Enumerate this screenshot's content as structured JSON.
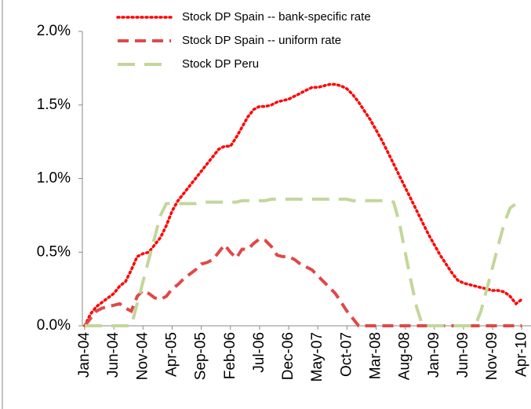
{
  "chart_data": {
    "type": "line",
    "categories": [
      "Jan-04",
      null,
      null,
      null,
      null,
      "Jun-04",
      null,
      null,
      null,
      null,
      "Nov-04",
      null,
      null,
      null,
      null,
      "Apr-05",
      null,
      null,
      null,
      null,
      "Sep-05",
      null,
      null,
      null,
      null,
      "Feb-06",
      null,
      null,
      null,
      null,
      "Jul-06",
      null,
      null,
      null,
      null,
      "Dec-06",
      null,
      null,
      null,
      null,
      "May-07",
      null,
      null,
      null,
      null,
      "Oct-07",
      null,
      null,
      null,
      null,
      "Mar-08",
      null,
      null,
      null,
      null,
      "Aug-08",
      null,
      null,
      null,
      null,
      "Jan-09",
      null,
      null,
      null,
      null,
      "Jun-09",
      null,
      null,
      null,
      null,
      "Nov-09",
      null,
      null,
      null,
      null,
      "Apr-10"
    ],
    "series": [
      {
        "name": "Stock DP Spain -- bank-specific rate",
        "color": "#ff0000",
        "style": "dotted",
        "values": [
          0,
          0.08,
          0.13,
          0.16,
          0.19,
          0.22,
          0.27,
          0.3,
          0.38,
          0.47,
          0.49,
          0.5,
          0.55,
          0.6,
          0.68,
          0.78,
          0.85,
          0.9,
          0.95,
          1.0,
          1.05,
          1.1,
          1.15,
          1.2,
          1.22,
          1.22,
          1.28,
          1.35,
          1.42,
          1.47,
          1.49,
          1.49,
          1.5,
          1.52,
          1.53,
          1.54,
          1.56,
          1.58,
          1.6,
          1.62,
          1.62,
          1.63,
          1.64,
          1.64,
          1.63,
          1.61,
          1.57,
          1.52,
          1.46,
          1.4,
          1.33,
          1.26,
          1.18,
          1.1,
          1.02,
          0.94,
          0.86,
          0.78,
          0.7,
          0.62,
          0.55,
          0.48,
          0.42,
          0.36,
          0.31,
          0.29,
          0.28,
          0.27,
          0.26,
          0.25,
          0.24,
          0.24,
          0.23,
          0.2,
          0.15,
          0.18
        ]
      },
      {
        "name": "Stock DP Spain -- uniform rate",
        "color": "#e04848",
        "style": "dashed",
        "values": [
          0,
          0.05,
          0.1,
          0.12,
          0.13,
          0.14,
          0.15,
          0.12,
          0.1,
          0.2,
          0.24,
          0.22,
          0.19,
          0.18,
          0.2,
          0.25,
          0.28,
          0.32,
          0.35,
          0.38,
          0.42,
          0.43,
          0.45,
          0.5,
          0.55,
          0.5,
          0.46,
          0.52,
          0.52,
          0.56,
          0.59,
          0.58,
          0.54,
          0.48,
          0.47,
          0.47,
          0.45,
          0.42,
          0.4,
          0.38,
          0.34,
          0.3,
          0.26,
          0.22,
          0.16,
          0.1,
          0.05,
          0,
          0,
          0,
          0,
          0,
          0,
          0,
          0,
          0,
          0,
          0,
          0,
          0,
          0,
          0,
          0,
          0,
          0,
          0,
          0,
          0,
          0,
          0,
          0,
          0,
          0,
          0,
          0,
          0
        ]
      },
      {
        "name": "Stock DP Peru",
        "color": "#c3d69b",
        "style": "longdash",
        "values": [
          0,
          0,
          0,
          0,
          0,
          0,
          0,
          0,
          0,
          0.15,
          0.3,
          0.45,
          0.6,
          0.75,
          0.83,
          0.83,
          0.83,
          0.83,
          0.83,
          0.83,
          0.84,
          0.84,
          0.84,
          0.84,
          0.84,
          0.84,
          0.84,
          0.85,
          0.85,
          0.85,
          0.85,
          0.85,
          0.86,
          0.86,
          0.86,
          0.86,
          0.86,
          0.86,
          0.86,
          0.86,
          0.86,
          0.86,
          0.86,
          0.86,
          0.86,
          0.86,
          0.85,
          0.85,
          0.85,
          0.85,
          0.85,
          0.85,
          0.85,
          0.84,
          0.7,
          0.5,
          0.3,
          0.12,
          0,
          0,
          0,
          0,
          0,
          0,
          0,
          0,
          0,
          0,
          0.1,
          0.25,
          0.4,
          0.55,
          0.7,
          0.8,
          0.83,
          0.83
        ]
      }
    ],
    "ylim": [
      0,
      2
    ],
    "yticks": [
      {
        "value": 0,
        "label": "0.0%"
      },
      {
        "value": 0.5,
        "label": "0.5%"
      },
      {
        "value": 1,
        "label": "1.0%"
      },
      {
        "value": 1.5,
        "label": "1.5%"
      },
      {
        "value": 2,
        "label": "2.0%"
      }
    ],
    "legend": "top"
  }
}
